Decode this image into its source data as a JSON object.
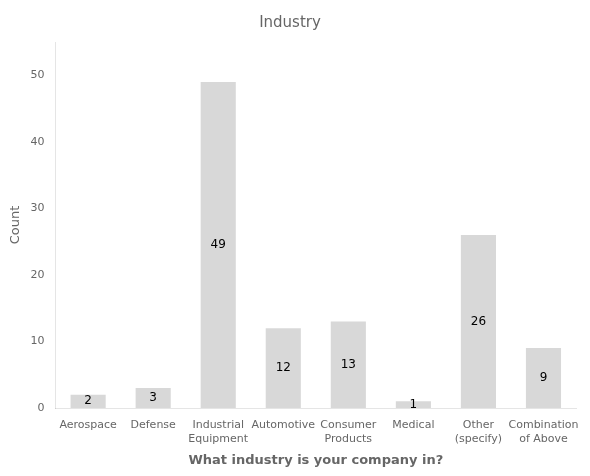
{
  "chart_data": {
    "type": "bar",
    "title": "Industry",
    "xlabel": "What industry is your company in?",
    "ylabel": "Count",
    "categories": [
      "Aerospace",
      "Defense",
      "Industrial\nEquipment",
      "Automotive",
      "Consumer\nProducts",
      "Medical",
      "Other\n(specify)",
      "Combination\nof Above"
    ],
    "values": [
      2,
      3,
      49,
      12,
      13,
      1,
      26,
      9
    ],
    "color": "#d8d8d8",
    "ylim": [
      0,
      55
    ],
    "yticks": [
      0,
      10,
      20,
      30,
      40,
      50
    ],
    "grid": false,
    "data_labels": true
  }
}
